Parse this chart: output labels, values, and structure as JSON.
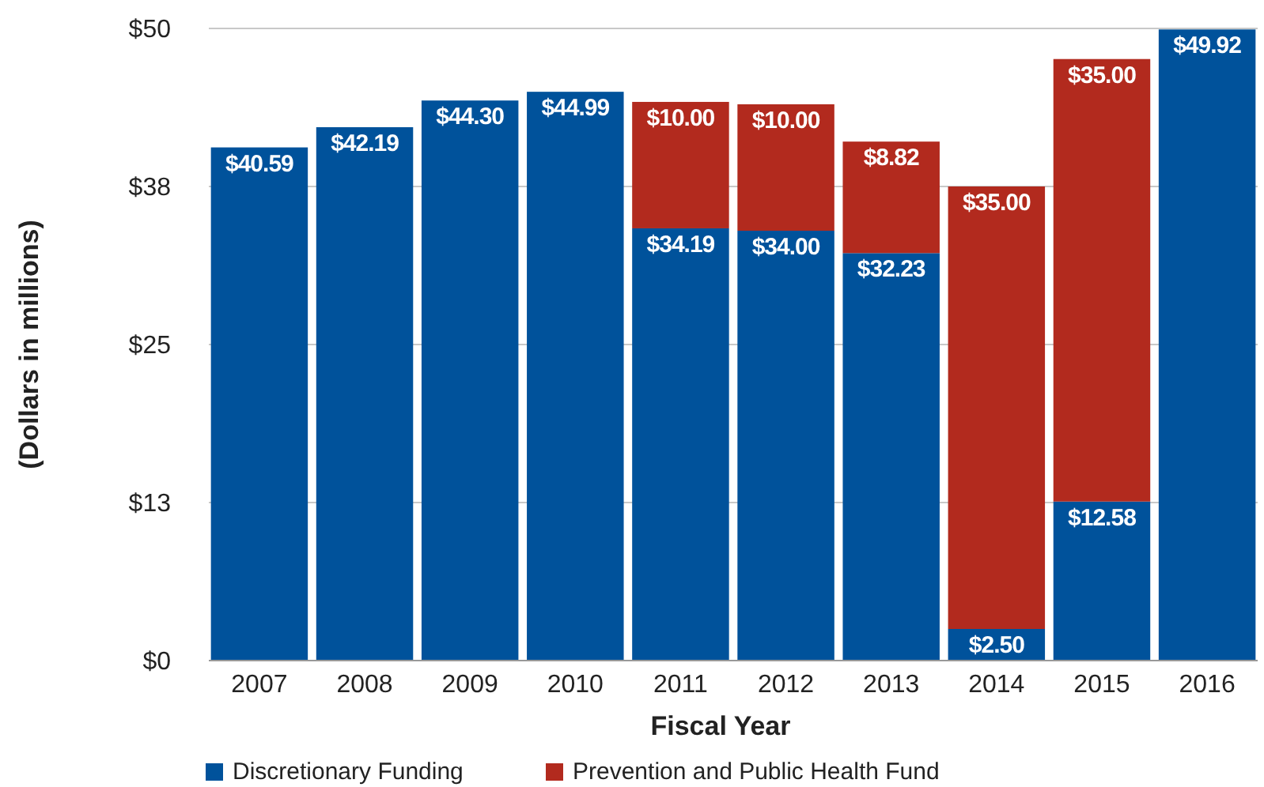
{
  "chart_data": {
    "type": "bar",
    "stacked": true,
    "xlabel": "Fiscal Year",
    "ylabel": "(Dollars in millions)",
    "categories": [
      "2007",
      "2008",
      "2009",
      "2010",
      "2011",
      "2012",
      "2013",
      "2014",
      "2015",
      "2016"
    ],
    "series": [
      {
        "name": "Discretionary Funding",
        "color": "#00529b",
        "values": [
          40.59,
          42.19,
          44.3,
          44.99,
          34.19,
          34.0,
          32.23,
          2.5,
          12.58,
          49.92
        ],
        "value_labels": [
          "$40.59",
          "$42.19",
          "$44.30",
          "$44.99",
          "$34.19",
          "$34.00",
          "$32.23",
          "$2.50",
          "$12.58",
          "$49.92"
        ]
      },
      {
        "name": "Prevention and Public Health Fund",
        "color": "#b22a1e",
        "values": [
          null,
          null,
          null,
          null,
          10.0,
          10.0,
          8.82,
          35.0,
          35.0,
          null
        ],
        "value_labels": [
          null,
          null,
          null,
          null,
          "$10.00",
          "$10.00",
          "$8.82",
          "$35.00",
          "$35.00",
          null
        ]
      }
    ],
    "ylim": [
      0,
      50
    ],
    "yticks": [
      {
        "value": 0,
        "label": "$0"
      },
      {
        "value": 12.5,
        "label": "$13"
      },
      {
        "value": 25,
        "label": "$25"
      },
      {
        "value": 37.5,
        "label": "$38"
      },
      {
        "value": 50,
        "label": "$50"
      }
    ],
    "grid": "y",
    "legend": "bottom"
  }
}
